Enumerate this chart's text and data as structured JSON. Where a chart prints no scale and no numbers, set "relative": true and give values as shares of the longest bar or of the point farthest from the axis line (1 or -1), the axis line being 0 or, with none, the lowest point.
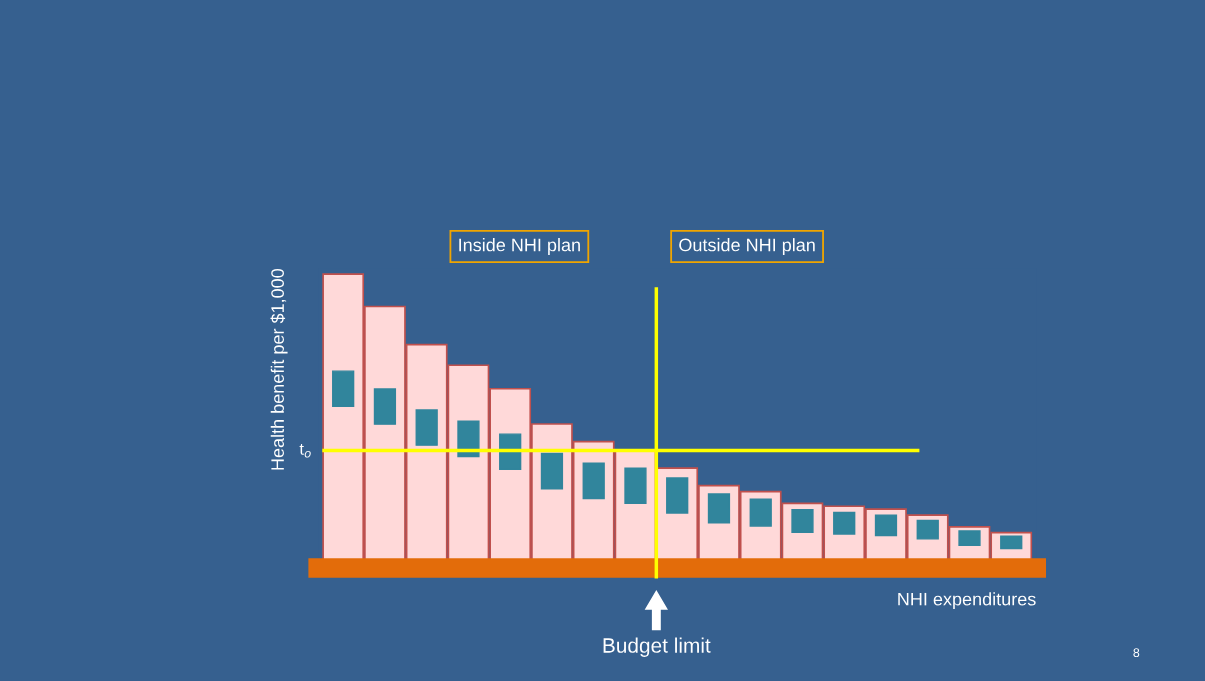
{
  "chart_data": {
    "type": "bar",
    "relative": true,
    "xlabel": "NHI expenditures",
    "ylabel": "Health benefit per $1,000",
    "categories": [
      null,
      null,
      null,
      null,
      null,
      null,
      null,
      null,
      null,
      null,
      null,
      null,
      null,
      null,
      null,
      null,
      null
    ],
    "values": [
      1,
      0.89,
      0.76,
      0.69,
      0.61,
      0.49,
      0.43,
      0.4,
      0.34,
      0.28,
      0.26,
      0.22,
      0.21,
      0.2,
      0.18,
      0.14,
      0.12
    ],
    "color": "#ffd9d9",
    "ref_lines": [
      {
        "axis": "y",
        "value": 0.4,
        "label": "t$_{o}$",
        "color": "#ffff00"
      }
    ],
    "annotations": [
      "Inside NHI plan",
      "Outside NHI plan",
      "Budget limit",
      "8"
    ],
    "grid": false,
    "legend": false
  }
}
